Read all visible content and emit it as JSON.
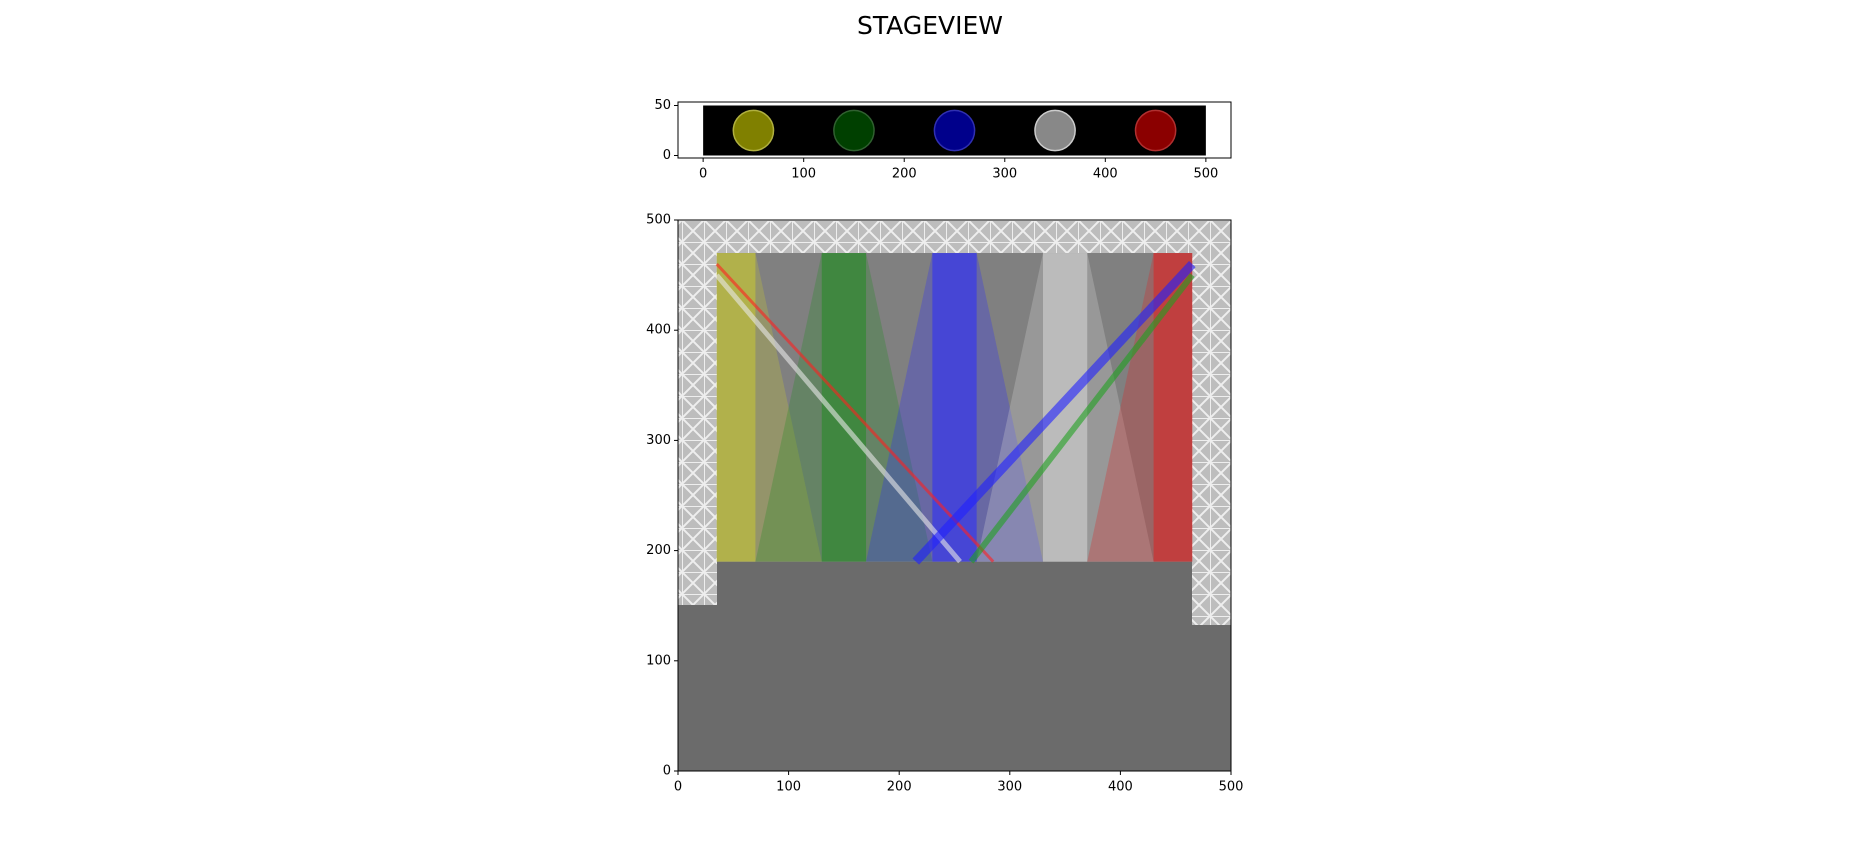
{
  "title": "STAGEVIEW",
  "chart_data": [
    {
      "type": "lights",
      "xlim": [
        -25,
        525
      ],
      "ylim": [
        -2.5,
        53.5
      ],
      "xticks": [
        0,
        100,
        200,
        300,
        400,
        500
      ],
      "yticks": [
        0,
        50
      ],
      "panel": {
        "x": [
          0,
          500
        ],
        "y": [
          0,
          50
        ],
        "color": "#000000"
      },
      "points": {
        "x": [
          50,
          150,
          250,
          350,
          450
        ],
        "y": [
          25,
          25,
          25,
          25,
          25
        ],
        "r": [
          20,
          20,
          20,
          20,
          20
        ],
        "colors": [
          "#808000",
          "#004000",
          "#00008b",
          "#888888",
          "#8b0000"
        ],
        "edge_colors": [
          "#b0b040",
          "#306030",
          "#3030b0",
          "#cccccc",
          "#b03030"
        ]
      }
    },
    {
      "type": "stage",
      "xlim": [
        0,
        500
      ],
      "ylim": [
        0,
        500
      ],
      "xticks": [
        0,
        100,
        200,
        300,
        400,
        500
      ],
      "yticks": [
        0,
        100,
        200,
        300,
        400,
        500
      ],
      "beams": {
        "colors": [
          "#c8c832",
          "#228b22",
          "#2a2aff",
          "#d8d8d8",
          "#e02020"
        ],
        "column_left": [
          35,
          130,
          230,
          330,
          430
        ],
        "column_right": [
          70,
          170,
          270,
          370,
          465
        ],
        "cone_bottom_left": [
          35,
          70,
          170,
          270,
          370
        ],
        "cone_bottom_right": [
          130,
          230,
          330,
          430,
          465
        ],
        "y_bottom": 190,
        "y_top": 470
      },
      "lasers": {
        "colors": [
          "#ff2020",
          "#e8e8e8",
          "#2020ff",
          "#20a020"
        ],
        "x0": [
          35,
          35,
          465,
          465
        ],
        "y0": [
          460,
          450,
          460,
          450
        ],
        "x1": [
          285,
          255,
          215,
          265
        ],
        "y1": [
          190,
          190,
          190,
          190
        ]
      }
    }
  ]
}
